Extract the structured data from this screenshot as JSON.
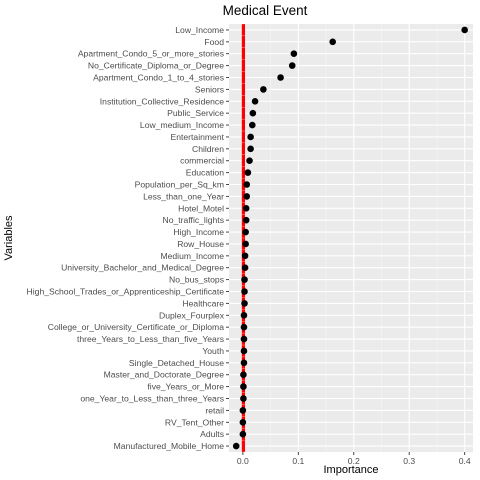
{
  "chart_data": {
    "type": "scatter",
    "title": "Medical Event",
    "xlabel": "Importance",
    "ylabel": "Variables",
    "xlim": [
      -0.025,
      0.415
    ],
    "x_ticks": [
      0.0,
      0.1,
      0.2,
      0.3,
      0.4
    ],
    "x_tick_labels": [
      "0.0",
      "0.1",
      "0.2",
      "0.3",
      "0.4"
    ],
    "grid": true,
    "legend": "none",
    "categories": [
      "Low_Income",
      "Food",
      "Apartment_Condo_5_or_more_stories",
      "No_Certificate_Diploma_or_Degree",
      "Apartment_Condo_1_to_4_stories",
      "Seniors",
      "Institution_Collective_Residence",
      "Public_Service",
      "Low_medium_Income",
      "Entertainment",
      "Children",
      "commercial",
      "Education",
      "Population_per_Sq_km",
      "Less_than_one_Year",
      "Hotel_Motel",
      "No_traffic_lights",
      "High_Income",
      "Row_House",
      "Medium_Income",
      "University_Bachelor_and_Medical_Degree",
      "No_bus_stops",
      "High_School_Trades_or_Apprenticeship_Certificate",
      "Healthcare",
      "Duplex_Fourplex",
      "College_or_University_Certificate_or_Diploma",
      "three_Years_to_Less_than_five_Years",
      "Youth",
      "Single_Detached_House",
      "Master_and_Doctorate_Degree",
      "five_Years_or_More",
      "one_Year_to_Less_than_three_Years",
      "retail",
      "RV_Tent_Other",
      "Adults",
      "Manufactured_Mobile_Home"
    ],
    "series": [
      {
        "type": "point",
        "color": "#000000",
        "values": [
          0.4,
          0.162,
          0.092,
          0.089,
          0.068,
          0.037,
          0.022,
          0.018,
          0.017,
          0.014,
          0.014,
          0.012,
          0.009,
          0.007,
          0.007,
          0.006,
          0.006,
          0.005,
          0.005,
          0.004,
          0.004,
          0.003,
          0.003,
          0.003,
          0.002,
          0.002,
          0.002,
          0.002,
          0.002,
          0.001,
          0.001,
          0.001,
          0.0,
          0.0,
          0.0,
          -0.012
        ]
      },
      {
        "type": "dashed-bar",
        "color": "#ff0000",
        "values": [
          0.001,
          0.001,
          0.001,
          0.001,
          0.001,
          0.001,
          0.001,
          0.001,
          0.001,
          0.001,
          0.001,
          0.001,
          0.001,
          0.001,
          0.001,
          0.001,
          0.001,
          0.001,
          0.001,
          0.001,
          0.001,
          0.001,
          0.001,
          0.001,
          0.001,
          0.001,
          0.001,
          0.001,
          0.001,
          0.001,
          0.001,
          0.001,
          0.001,
          0.001,
          0.001,
          0.001
        ]
      }
    ]
  }
}
